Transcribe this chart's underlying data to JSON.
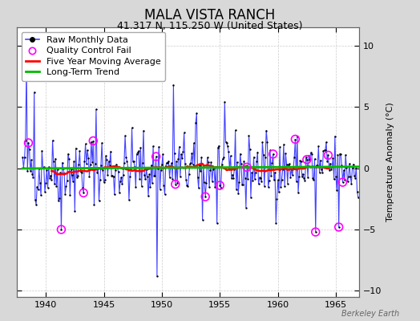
{
  "title": "MALA VISTA RANCH",
  "subtitle": "41.317 N, 115.250 W (United States)",
  "ylabel": "Temperature Anomaly (°C)",
  "watermark": "Berkeley Earth",
  "xlim": [
    1937.5,
    1967.0
  ],
  "ylim": [
    -10.5,
    11.5
  ],
  "yticks": [
    -10,
    -5,
    0,
    5,
    10
  ],
  "xticks": [
    1940,
    1945,
    1950,
    1955,
    1960,
    1965
  ],
  "bg_color": "#d8d8d8",
  "plot_bg_color": "#ffffff",
  "raw_color": "#4444ff",
  "raw_dot_color": "#000000",
  "qc_color": "#ff00ff",
  "moving_avg_color": "#ff0000",
  "trend_color": "#00bb00",
  "raw_linewidth": 0.8,
  "moving_avg_linewidth": 1.8,
  "trend_linewidth": 2.0,
  "title_fontsize": 12,
  "subtitle_fontsize": 9,
  "label_fontsize": 8,
  "tick_fontsize": 8,
  "legend_fontsize": 8
}
